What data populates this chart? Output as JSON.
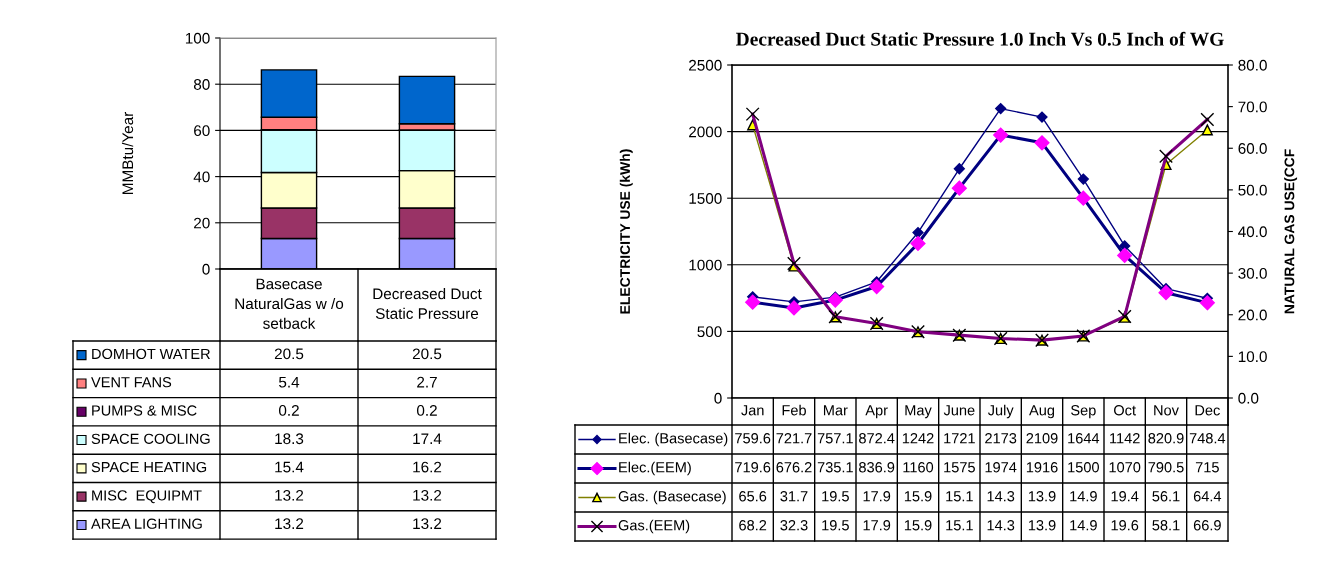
{
  "chart_data": [
    {
      "type": "bar",
      "stacked": true,
      "ylabel": "MMBtu/Year",
      "categories": [
        "Basecase NaturalGas w /o setback",
        "Decreased Duct Static Pressure"
      ],
      "ylim": [
        0,
        100
      ],
      "yticks": [
        0,
        20,
        40,
        60,
        80,
        100
      ],
      "grid": "y",
      "legend": "bottom left",
      "series": [
        {
          "name": "AREA LIGHTING",
          "color": "#9999ff",
          "values": [
            13.2,
            13.2
          ],
          "value_labels": [
            "13.2",
            "13.2"
          ]
        },
        {
          "name": "MISC  EQUIPMT",
          "color": "#993366",
          "values": [
            13.2,
            13.2
          ],
          "value_labels": [
            "13.2",
            "13.2"
          ]
        },
        {
          "name": "SPACE HEATING",
          "color": "#ffffcc",
          "values": [
            15.4,
            16.2
          ],
          "value_labels": [
            "15.4",
            "16.2"
          ]
        },
        {
          "name": "SPACE COOLING",
          "color": "#ccffff",
          "values": [
            18.3,
            17.4
          ],
          "value_labels": [
            "18.3",
            "17.4"
          ]
        },
        {
          "name": "PUMPS & MISC",
          "color": "#660066",
          "values": [
            0.2,
            0.2
          ],
          "value_labels": [
            "0.2",
            "0.2"
          ]
        },
        {
          "name": "VENT FANS",
          "color": "#ff8080",
          "values": [
            5.4,
            2.7
          ],
          "value_labels": [
            "5.4",
            "2.7"
          ]
        },
        {
          "name": "DOMHOT WATER",
          "color": "#0066cc",
          "values": [
            20.5,
            20.5
          ],
          "value_labels": [
            "20.5",
            "20.5"
          ]
        }
      ]
    },
    {
      "type": "line",
      "title": "Decreased Duct Static Pressure 1.0 Inch Vs 0.5 Inch of WG",
      "ylabel": "ELECTRICITY USE (kWh)",
      "y2label": "NATURAL GAS USE(CCF",
      "categories": [
        "Jan",
        "Feb",
        "Mar",
        "Apr",
        "May",
        "June",
        "July",
        "Aug",
        "Sep",
        "Oct",
        "Nov",
        "Dec"
      ],
      "ylim": [
        0,
        2500
      ],
      "yticks": [
        0,
        500,
        1000,
        1500,
        2000,
        2500
      ],
      "y2lim": [
        0,
        80
      ],
      "y2ticks": [
        {
          "value": 0,
          "label": "0.0"
        },
        {
          "value": 10,
          "label": "10.0"
        },
        {
          "value": 20,
          "label": "20.0"
        },
        {
          "value": 30,
          "label": "30.0"
        },
        {
          "value": 40,
          "label": "40.0"
        },
        {
          "value": 50,
          "label": "50.0"
        },
        {
          "value": 60,
          "label": "60.0"
        },
        {
          "value": 70,
          "label": "70.0"
        },
        {
          "value": 80,
          "label": "80.0"
        }
      ],
      "grid": "y",
      "data_labels": true,
      "line_style": "solid",
      "legend": "bottom left",
      "series": [
        {
          "name": "Elec. (Basecase)",
          "color": "#000080",
          "colors": [
            "#000080",
            "#000080",
            "#000080",
            "#000080",
            "#000080",
            "#000080",
            "#000080",
            "#000080",
            "#000080",
            "#000080",
            "#000080",
            "#000080"
          ],
          "marker": "diamond",
          "values": [
            759.6,
            721.7,
            757.1,
            872.4,
            1242,
            1721,
            2173,
            2109,
            1644,
            1142,
            820.9,
            748.4
          ]
        },
        {
          "name": "Elec.(EEM)",
          "color": "#000080",
          "colors": [
            "#ff00ff",
            "#ff00ff",
            "#ff00ff",
            "#ff00ff",
            "#ff00ff",
            "#ff00ff",
            "#ff00ff",
            "#ff00ff",
            "#ff00ff",
            "#ff00ff",
            "#ff00ff",
            "#ff00ff"
          ],
          "marker": "diamond",
          "values": [
            719.6,
            676.2,
            735.1,
            836.9,
            1160,
            1575,
            1974,
            1916,
            1500,
            1070,
            790.5,
            715
          ]
        },
        {
          "name": "Gas. (Basecase)",
          "axis": "y2",
          "color": "#808000",
          "colors": [
            "#ffff00",
            "#ffff00",
            "#ffff00",
            "#ffff00",
            "#ffff00",
            "#ffff00",
            "#ffff00",
            "#ffff00",
            "#ffff00",
            "#ffff00",
            "#ffff00",
            "#ffff00"
          ],
          "marker": "triangle",
          "values": [
            65.6,
            31.7,
            19.5,
            17.9,
            15.9,
            15.1,
            14.3,
            13.9,
            14.9,
            19.4,
            56.1,
            64.4
          ]
        },
        {
          "name": "Gas.(EEM)",
          "axis": "y2",
          "color": "#800080",
          "colors": [
            "#000000",
            "#000000",
            "#000000",
            "#000000",
            "#000000",
            "#000000",
            "#000000",
            "#000000",
            "#000000",
            "#000000",
            "#000000",
            "#000000"
          ],
          "marker": "cross",
          "values": [
            68.2,
            32.3,
            19.5,
            17.9,
            15.9,
            15.1,
            14.3,
            13.9,
            14.9,
            19.6,
            58.1,
            66.9
          ]
        }
      ]
    }
  ]
}
